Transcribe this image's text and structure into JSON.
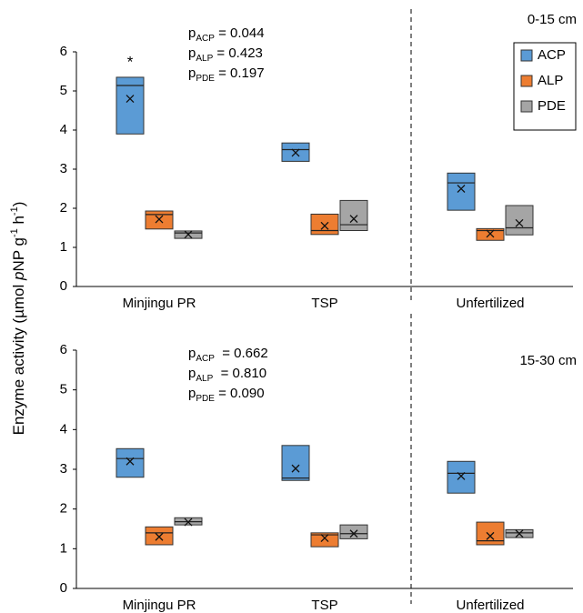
{
  "chart_data": [
    {
      "type": "box",
      "panel_label": "0-15 cm",
      "ylabel": [
        "Enzyme activity (µmol ",
        "p",
        "NP g",
        "-1",
        " h",
        "-1",
        ")"
      ],
      "categories": [
        "Minjingu PR",
        "TSP",
        "Unfertilized"
      ],
      "series": [
        {
          "name": "ACP",
          "color": "#5b9bd5",
          "q1": [
            3.9,
            3.2,
            1.95
          ],
          "median": [
            5.14,
            3.5,
            2.65
          ],
          "q3": [
            5.35,
            3.67,
            2.9
          ],
          "mean": [
            4.8,
            3.42,
            2.5
          ]
        },
        {
          "name": "ALP",
          "color": "#ed7d31",
          "q1": [
            1.47,
            1.33,
            1.18
          ],
          "median": [
            1.84,
            1.43,
            1.43
          ],
          "q3": [
            1.93,
            1.85,
            1.48
          ],
          "mean": [
            1.72,
            1.55,
            1.35
          ]
        },
        {
          "name": "PDE",
          "color": "#a5a5a5",
          "q1": [
            1.23,
            1.43,
            1.32
          ],
          "median": [
            1.37,
            1.58,
            1.5
          ],
          "q3": [
            1.42,
            2.2,
            2.07
          ],
          "mean": [
            1.33,
            1.73,
            1.62
          ]
        }
      ],
      "significance": [
        "*",
        null,
        null
      ],
      "stats": [
        {
          "p": "p",
          "sub": "ACP",
          "eq": " = 0.044"
        },
        {
          "p": "p",
          "sub": "ALP",
          "eq": " = 0.423"
        },
        {
          "p": "p",
          "sub": "PDE",
          "eq": " = 0.197"
        }
      ],
      "ylim": [
        0,
        6
      ],
      "yticks": [
        0,
        1,
        2,
        3,
        4,
        5,
        6
      ],
      "legend": "upper right"
    },
    {
      "type": "box",
      "panel_label": "15-30 cm",
      "categories": [
        "Minjingu PR",
        "TSP",
        "Unfertilized"
      ],
      "series": [
        {
          "name": "ACP",
          "color": "#5b9bd5",
          "q1": [
            2.8,
            2.72,
            2.4
          ],
          "median": [
            3.27,
            2.78,
            2.9
          ],
          "q3": [
            3.52,
            3.6,
            3.2
          ],
          "mean": [
            3.2,
            3.02,
            2.83
          ]
        },
        {
          "name": "ALP",
          "color": "#ed7d31",
          "q1": [
            1.1,
            1.05,
            1.1
          ],
          "median": [
            1.4,
            1.35,
            1.2
          ],
          "q3": [
            1.55,
            1.4,
            1.67
          ],
          "mean": [
            1.3,
            1.27,
            1.32
          ]
        },
        {
          "name": "PDE",
          "color": "#a5a5a5",
          "q1": [
            1.6,
            1.25,
            1.28
          ],
          "median": [
            1.68,
            1.38,
            1.4
          ],
          "q3": [
            1.78,
            1.6,
            1.48
          ],
          "mean": [
            1.67,
            1.38,
            1.38
          ]
        }
      ],
      "stats": [
        {
          "p": "p",
          "sub": "ACP",
          "eq": "  = 0.662"
        },
        {
          "p": "p",
          "sub": "ALP",
          "eq": "  = 0.810"
        },
        {
          "p": "p",
          "sub": "PDE",
          "eq": " = 0.090"
        }
      ],
      "ylim": [
        0,
        6
      ],
      "yticks": [
        0,
        1,
        2,
        3,
        4,
        5,
        6
      ]
    }
  ]
}
